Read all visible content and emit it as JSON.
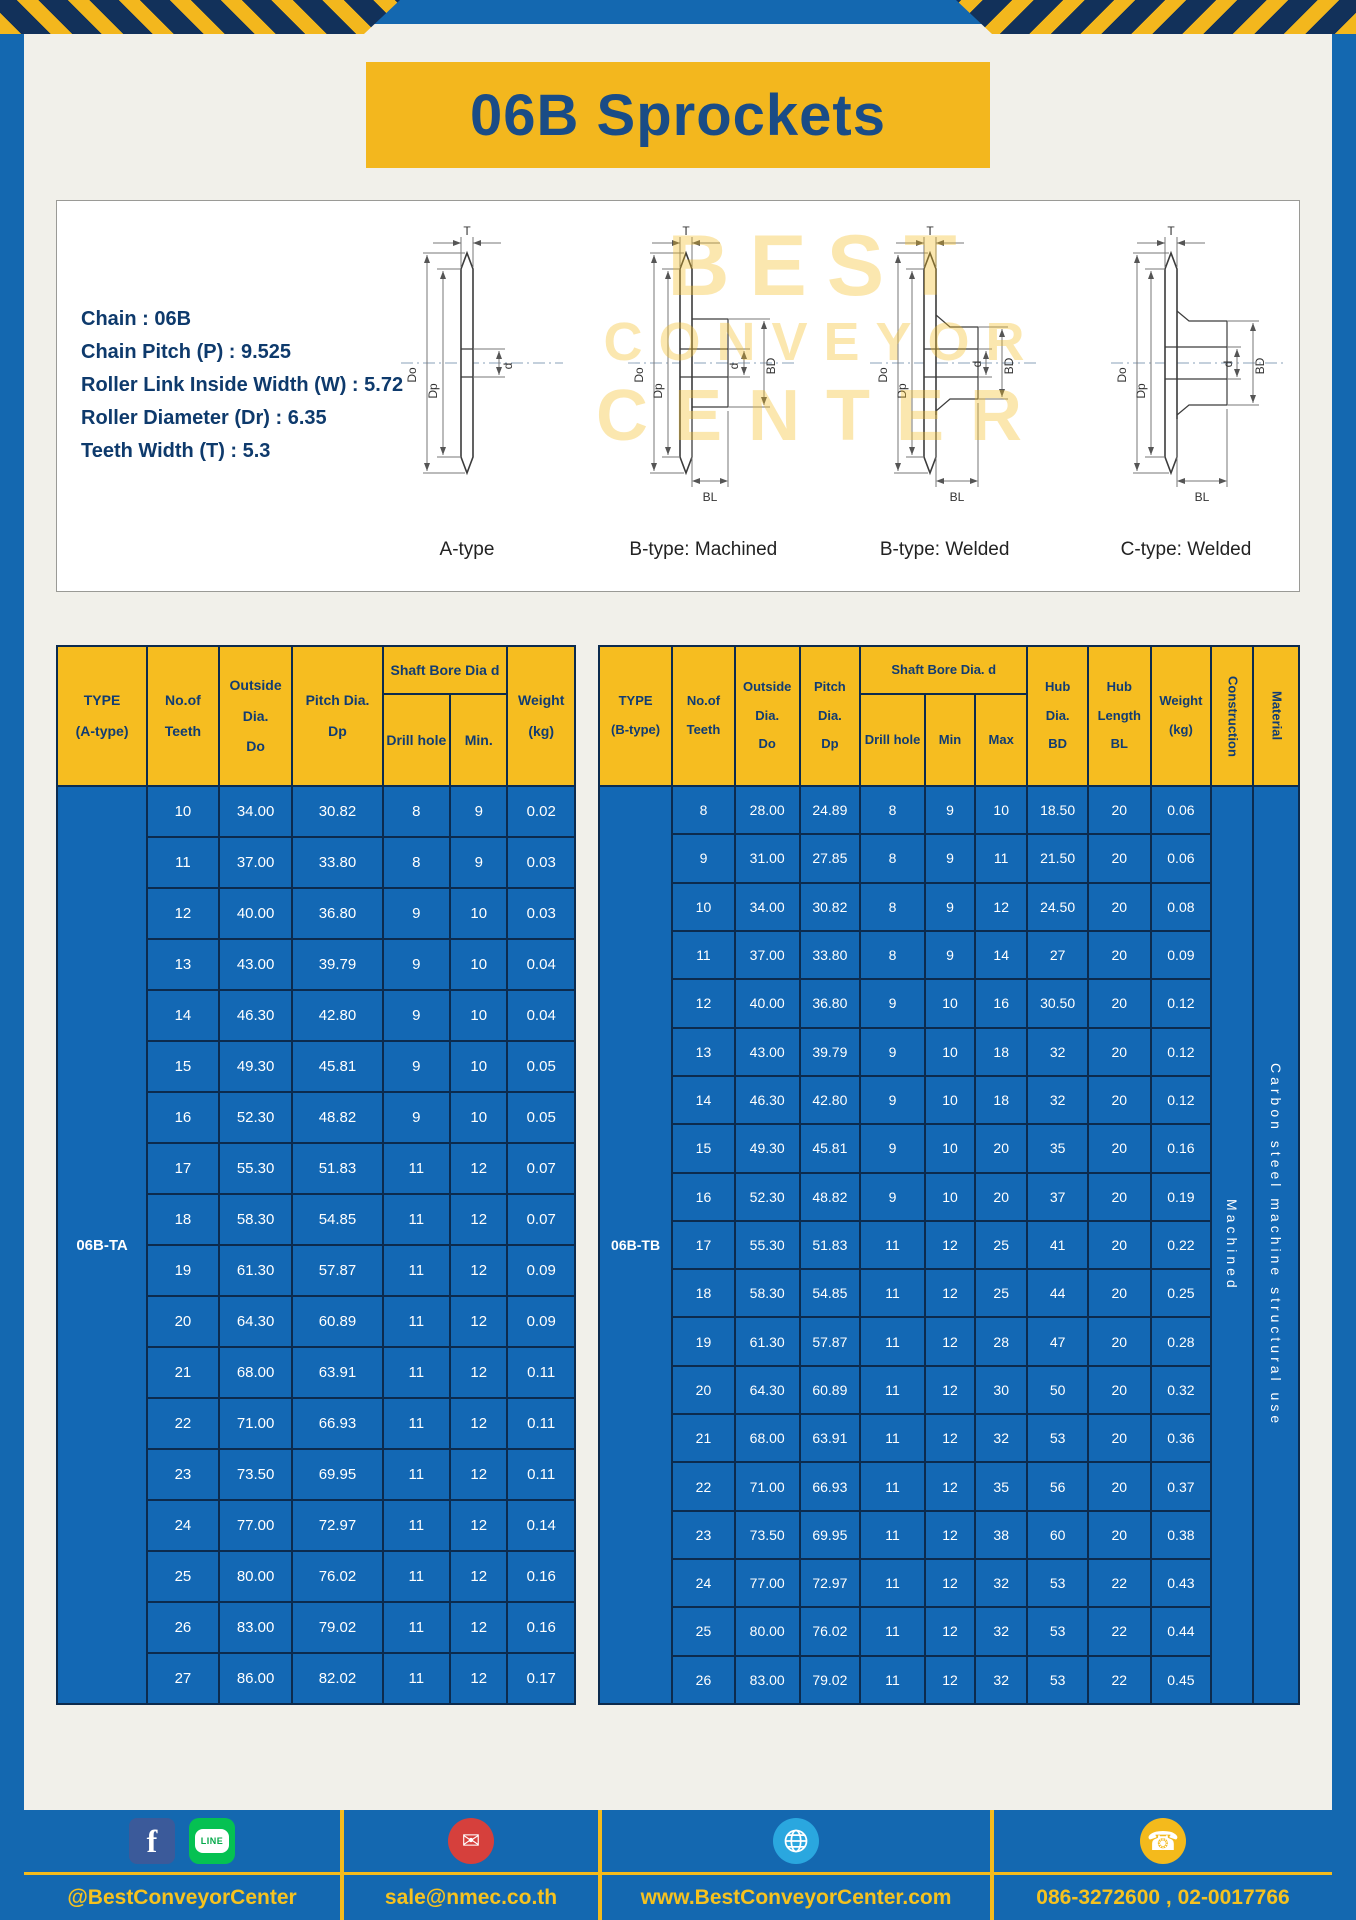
{
  "banner": {
    "title": "06B Sprockets"
  },
  "specs": {
    "lines": [
      "Chain : 06B",
      "Chain Pitch (P) : 9.525",
      "Roller Link Inside Width (W) : 5.72",
      "Roller Diameter (Dr) : 6.35",
      "Teeth Width (T) : 5.3"
    ]
  },
  "watermark": {
    "line1": "BEST",
    "line2": "CONVEYOR",
    "line3": "CENTER"
  },
  "diagrams": {
    "captions": [
      "A-type",
      "B-type: Machined",
      "B-type: Welded",
      "C-type: Welded"
    ],
    "dims": {
      "T": "T",
      "Do": "Do",
      "Dp": "Dp",
      "d": "d",
      "BD": "BD",
      "BL": "BL"
    }
  },
  "table_a": {
    "header": {
      "type": "TYPE\n(A-type)",
      "teeth": "No.of\nTeeth",
      "outside": "Outside\nDia.\nDo",
      "pitch": "Pitch Dia.\nDp",
      "bore_group": "Shaft Bore Dia d",
      "drill": "Drill hole",
      "min": "Min.",
      "weight": "Weight\n(kg)"
    },
    "type_value": "06B-TA",
    "rows": [
      [
        "10",
        "34.00",
        "30.82",
        "8",
        "9",
        "0.02"
      ],
      [
        "11",
        "37.00",
        "33.80",
        "8",
        "9",
        "0.03"
      ],
      [
        "12",
        "40.00",
        "36.80",
        "9",
        "10",
        "0.03"
      ],
      [
        "13",
        "43.00",
        "39.79",
        "9",
        "10",
        "0.04"
      ],
      [
        "14",
        "46.30",
        "42.80",
        "9",
        "10",
        "0.04"
      ],
      [
        "15",
        "49.30",
        "45.81",
        "9",
        "10",
        "0.05"
      ],
      [
        "16",
        "52.30",
        "48.82",
        "9",
        "10",
        "0.05"
      ],
      [
        "17",
        "55.30",
        "51.83",
        "11",
        "12",
        "0.07"
      ],
      [
        "18",
        "58.30",
        "54.85",
        "11",
        "12",
        "0.07"
      ],
      [
        "19",
        "61.30",
        "57.87",
        "11",
        "12",
        "0.09"
      ],
      [
        "20",
        "64.30",
        "60.89",
        "11",
        "12",
        "0.09"
      ],
      [
        "21",
        "68.00",
        "63.91",
        "11",
        "12",
        "0.11"
      ],
      [
        "22",
        "71.00",
        "66.93",
        "11",
        "12",
        "0.11"
      ],
      [
        "23",
        "73.50",
        "69.95",
        "11",
        "12",
        "0.11"
      ],
      [
        "24",
        "77.00",
        "72.97",
        "11",
        "12",
        "0.14"
      ],
      [
        "25",
        "80.00",
        "76.02",
        "11",
        "12",
        "0.16"
      ],
      [
        "26",
        "83.00",
        "79.02",
        "11",
        "12",
        "0.16"
      ],
      [
        "27",
        "86.00",
        "82.02",
        "11",
        "12",
        "0.17"
      ]
    ]
  },
  "table_b": {
    "header": {
      "type": "TYPE\n(B-type)",
      "teeth": "No.of\nTeeth",
      "outside": "Outside\nDia.\nDo",
      "pitch": "Pitch\nDia.\nDp",
      "bore_group": "Shaft Bore Dia. d",
      "drill": "Drill hole",
      "min": "Min",
      "max": "Max",
      "hub_dia": "Hub\nDia.\nBD",
      "hub_len": "Hub\nLength\nBL",
      "weight": "Weight\n(kg)",
      "construction": "Construction",
      "material": "Material"
    },
    "type_value": "06B-TB",
    "construction_value": "Machined",
    "material_value": "Carbon steel machine structural use",
    "rows": [
      [
        "8",
        "28.00",
        "24.89",
        "8",
        "9",
        "10",
        "18.50",
        "20",
        "0.06"
      ],
      [
        "9",
        "31.00",
        "27.85",
        "8",
        "9",
        "11",
        "21.50",
        "20",
        "0.06"
      ],
      [
        "10",
        "34.00",
        "30.82",
        "8",
        "9",
        "12",
        "24.50",
        "20",
        "0.08"
      ],
      [
        "11",
        "37.00",
        "33.80",
        "8",
        "9",
        "14",
        "27",
        "20",
        "0.09"
      ],
      [
        "12",
        "40.00",
        "36.80",
        "9",
        "10",
        "16",
        "30.50",
        "20",
        "0.12"
      ],
      [
        "13",
        "43.00",
        "39.79",
        "9",
        "10",
        "18",
        "32",
        "20",
        "0.12"
      ],
      [
        "14",
        "46.30",
        "42.80",
        "9",
        "10",
        "18",
        "32",
        "20",
        "0.12"
      ],
      [
        "15",
        "49.30",
        "45.81",
        "9",
        "10",
        "20",
        "35",
        "20",
        "0.16"
      ],
      [
        "16",
        "52.30",
        "48.82",
        "9",
        "10",
        "20",
        "37",
        "20",
        "0.19"
      ],
      [
        "17",
        "55.30",
        "51.83",
        "11",
        "12",
        "25",
        "41",
        "20",
        "0.22"
      ],
      [
        "18",
        "58.30",
        "54.85",
        "11",
        "12",
        "25",
        "44",
        "20",
        "0.25"
      ],
      [
        "19",
        "61.30",
        "57.87",
        "11",
        "12",
        "28",
        "47",
        "20",
        "0.28"
      ],
      [
        "20",
        "64.30",
        "60.89",
        "11",
        "12",
        "30",
        "50",
        "20",
        "0.32"
      ],
      [
        "21",
        "68.00",
        "63.91",
        "11",
        "12",
        "32",
        "53",
        "20",
        "0.36"
      ],
      [
        "22",
        "71.00",
        "66.93",
        "11",
        "12",
        "35",
        "56",
        "20",
        "0.37"
      ],
      [
        "23",
        "73.50",
        "69.95",
        "11",
        "12",
        "38",
        "60",
        "20",
        "0.38"
      ],
      [
        "24",
        "77.00",
        "72.97",
        "11",
        "12",
        "32",
        "53",
        "22",
        "0.43"
      ],
      [
        "25",
        "80.00",
        "76.02",
        "11",
        "12",
        "32",
        "53",
        "22",
        "0.44"
      ],
      [
        "26",
        "83.00",
        "79.02",
        "11",
        "12",
        "32",
        "53",
        "22",
        "0.45"
      ]
    ]
  },
  "footer": {
    "social_text": "@BestConveyorCenter",
    "email": "sale@nmec.co.th",
    "website": "www.BestConveyorCenter.com",
    "phone": "086-3272600 , 02-0017766",
    "line_label": "LINE"
  },
  "icons": {
    "facebook": "f",
    "email": "✉",
    "phone": "☎"
  },
  "colors": {
    "frame_blue": "#1468b0",
    "accent_yellow": "#f3b71e",
    "navy": "#12315a",
    "table_blue": "#1368b4",
    "header_yellow": "#f6bd20",
    "title_blue": "#1a4c86"
  }
}
